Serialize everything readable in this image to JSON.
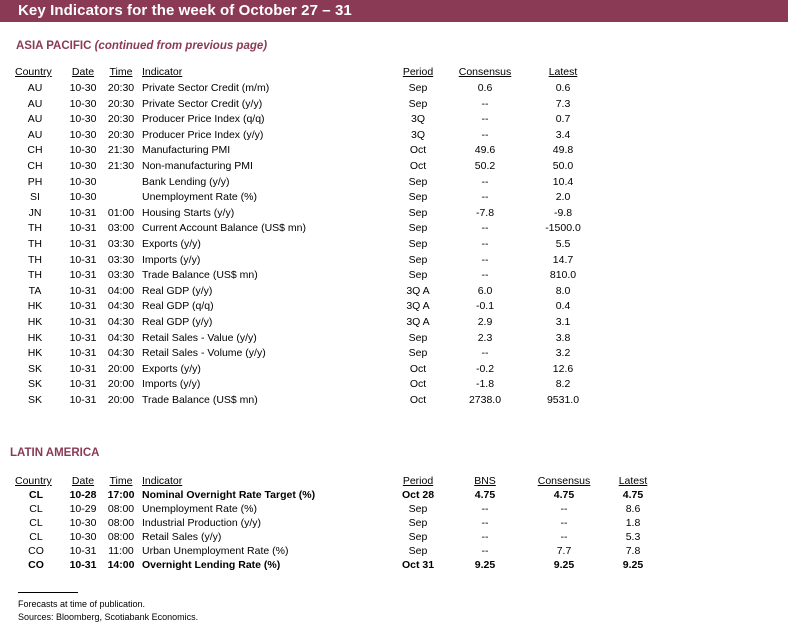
{
  "header": {
    "title": "Key Indicators for the week of October 27 – 31"
  },
  "asia": {
    "title": "ASIA PACIFIC",
    "subtitle": "(continued from previous page)",
    "columns": {
      "country": "Country",
      "date": "Date",
      "time": "Time",
      "indicator": "Indicator",
      "period": "Period",
      "consensus": "Consensus",
      "latest": "Latest"
    },
    "rows": [
      {
        "country": "AU",
        "date": "10-30",
        "time": "20:30",
        "indicator": "Private Sector Credit (m/m)",
        "period": "Sep",
        "consensus": "0.6",
        "latest": "0.6"
      },
      {
        "country": "AU",
        "date": "10-30",
        "time": "20:30",
        "indicator": "Private Sector Credit (y/y)",
        "period": "Sep",
        "consensus": "--",
        "latest": "7.3"
      },
      {
        "country": "AU",
        "date": "10-30",
        "time": "20:30",
        "indicator": "Producer Price Index (q/q)",
        "period": "3Q",
        "consensus": "--",
        "latest": "0.7"
      },
      {
        "country": "AU",
        "date": "10-30",
        "time": "20:30",
        "indicator": "Producer Price Index (y/y)",
        "period": "3Q",
        "consensus": "--",
        "latest": "3.4"
      },
      {
        "country": "CH",
        "date": "10-30",
        "time": "21:30",
        "indicator": "Manufacturing PMI",
        "period": "Oct",
        "consensus": "49.6",
        "latest": "49.8"
      },
      {
        "country": "CH",
        "date": "10-30",
        "time": "21:30",
        "indicator": "Non-manufacturing PMI",
        "period": "Oct",
        "consensus": "50.2",
        "latest": "50.0"
      },
      {
        "country": "PH",
        "date": "10-30",
        "time": "",
        "indicator": "Bank Lending (y/y)",
        "period": "Sep",
        "consensus": "--",
        "latest": "10.4"
      },
      {
        "country": "SI",
        "date": "10-30",
        "time": "",
        "indicator": "Unemployment Rate (%)",
        "period": "Sep",
        "consensus": "--",
        "latest": "2.0"
      },
      {
        "country": "JN",
        "date": "10-31",
        "time": "01:00",
        "indicator": "Housing Starts (y/y)",
        "period": "Sep",
        "consensus": "-7.8",
        "latest": "-9.8"
      },
      {
        "country": "TH",
        "date": "10-31",
        "time": "03:00",
        "indicator": "Current Account Balance (US$ mn)",
        "period": "Sep",
        "consensus": "--",
        "latest": "-1500.0"
      },
      {
        "country": "TH",
        "date": "10-31",
        "time": "03:30",
        "indicator": "Exports (y/y)",
        "period": "Sep",
        "consensus": "--",
        "latest": "5.5"
      },
      {
        "country": "TH",
        "date": "10-31",
        "time": "03:30",
        "indicator": "Imports (y/y)",
        "period": "Sep",
        "consensus": "--",
        "latest": "14.7"
      },
      {
        "country": "TH",
        "date": "10-31",
        "time": "03:30",
        "indicator": "Trade Balance (US$ mn)",
        "period": "Sep",
        "consensus": "--",
        "latest": "810.0"
      },
      {
        "country": "TA",
        "date": "10-31",
        "time": "04:00",
        "indicator": "Real GDP (y/y)",
        "period": "3Q A",
        "consensus": "6.0",
        "latest": "8.0"
      },
      {
        "country": "HK",
        "date": "10-31",
        "time": "04:30",
        "indicator": "Real GDP (q/q)",
        "period": "3Q A",
        "consensus": "-0.1",
        "latest": "0.4"
      },
      {
        "country": "HK",
        "date": "10-31",
        "time": "04:30",
        "indicator": "Real GDP (y/y)",
        "period": "3Q A",
        "consensus": "2.9",
        "latest": "3.1"
      },
      {
        "country": "HK",
        "date": "10-31",
        "time": "04:30",
        "indicator": "Retail Sales - Value (y/y)",
        "period": "Sep",
        "consensus": "2.3",
        "latest": "3.8"
      },
      {
        "country": "HK",
        "date": "10-31",
        "time": "04:30",
        "indicator": "Retail Sales - Volume (y/y)",
        "period": "Sep",
        "consensus": "--",
        "latest": "3.2"
      },
      {
        "country": "SK",
        "date": "10-31",
        "time": "20:00",
        "indicator": "Exports (y/y)",
        "period": "Oct",
        "consensus": "-0.2",
        "latest": "12.6"
      },
      {
        "country": "SK",
        "date": "10-31",
        "time": "20:00",
        "indicator": "Imports (y/y)",
        "period": "Oct",
        "consensus": "-1.8",
        "latest": "8.2"
      },
      {
        "country": "SK",
        "date": "10-31",
        "time": "20:00",
        "indicator": "Trade Balance (US$ mn)",
        "period": "Oct",
        "consensus": "2738.0",
        "latest": "9531.0"
      }
    ]
  },
  "latam": {
    "title": "LATIN AMERICA",
    "columns": {
      "country": "Country",
      "date": "Date",
      "time": "Time",
      "indicator": "Indicator",
      "period": "Period",
      "bns": "BNS",
      "consensus": "Consensus",
      "latest": "Latest"
    },
    "rows": [
      {
        "country": "CL",
        "date": "10-28",
        "time": "17:00",
        "indicator": "Nominal Overnight Rate Target (%)",
        "period": "Oct 28",
        "bns": "4.75",
        "consensus": "4.75",
        "latest": "4.75",
        "bold": true
      },
      {
        "country": "CL",
        "date": "10-29",
        "time": "08:00",
        "indicator": "Unemployment Rate (%)",
        "period": "Sep",
        "bns": "--",
        "consensus": "--",
        "latest": "8.6",
        "bold": false
      },
      {
        "country": "CL",
        "date": "10-30",
        "time": "08:00",
        "indicator": "Industrial Production (y/y)",
        "period": "Sep",
        "bns": "--",
        "consensus": "--",
        "latest": "1.8",
        "bold": false
      },
      {
        "country": "CL",
        "date": "10-30",
        "time": "08:00",
        "indicator": "Retail Sales (y/y)",
        "period": "Sep",
        "bns": "--",
        "consensus": "--",
        "latest": "5.3",
        "bold": false
      },
      {
        "country": "CO",
        "date": "10-31",
        "time": "11:00",
        "indicator": "Urban Unemployment Rate (%)",
        "period": "Sep",
        "bns": "--",
        "consensus": "7.7",
        "latest": "7.8",
        "bold": false
      },
      {
        "country": "CO",
        "date": "10-31",
        "time": "14:00",
        "indicator": "Overnight Lending Rate (%)",
        "period": "Oct 31",
        "bns": "9.25",
        "consensus": "9.25",
        "latest": "9.25",
        "bold": true
      }
    ]
  },
  "footer": {
    "note": "Forecasts at time of publication.",
    "sources": "Sources: Bloomberg, Scotiabank Economics."
  },
  "colors": {
    "accent": "#8b3a55"
  }
}
